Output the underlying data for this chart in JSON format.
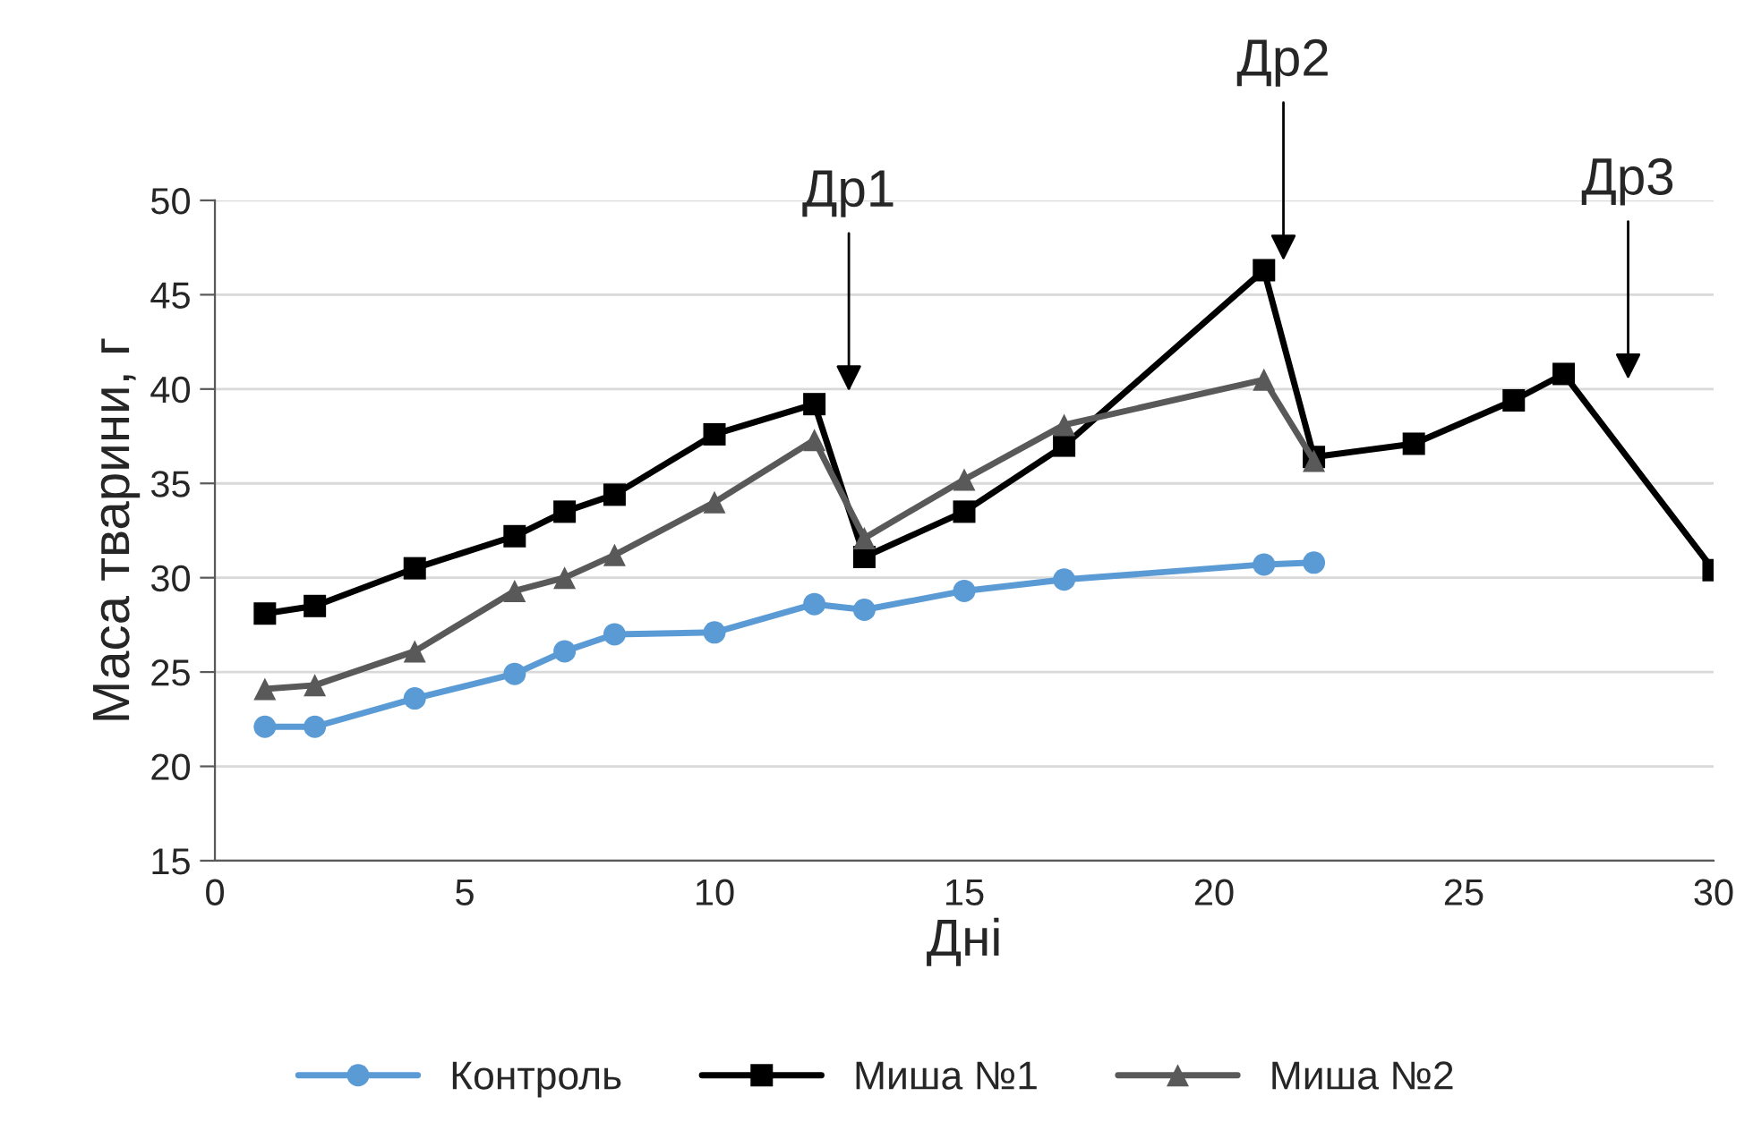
{
  "chart_data": {
    "type": "line",
    "xlabel": "Дні",
    "ylabel": "Маса тварини, г",
    "xlim": [
      0,
      30
    ],
    "xticks": [
      0,
      5,
      10,
      15,
      20,
      25,
      30
    ],
    "ylim": [
      15,
      50
    ],
    "yticks": [
      15,
      20,
      25,
      30,
      35,
      40,
      45,
      50
    ],
    "grid": "y",
    "legend": "bottom",
    "line_style": "solid",
    "series": [
      {
        "name": "Контроль",
        "color": "#5b9bd5",
        "marker": "circle",
        "x": [
          1,
          2,
          4,
          6,
          7,
          8,
          10,
          12,
          13,
          15,
          17,
          21,
          22
        ],
        "values": [
          22.1,
          22.1,
          23.6,
          24.9,
          26.1,
          27.0,
          27.1,
          28.6,
          28.3,
          29.3,
          29.9,
          30.7,
          30.8
        ]
      },
      {
        "name": "Миша №1",
        "color": "#000000",
        "marker": "square",
        "x": [
          1,
          2,
          4,
          6,
          7,
          8,
          10,
          12,
          13,
          15,
          17,
          21,
          22,
          24,
          26,
          27,
          30
        ],
        "values": [
          28.1,
          28.5,
          30.5,
          32.2,
          33.5,
          34.4,
          37.6,
          39.2,
          31.1,
          33.5,
          37.0,
          46.3,
          36.4,
          37.1,
          39.4,
          40.8,
          30.4
        ]
      },
      {
        "name": "Миша №2",
        "color": "#595959",
        "marker": "triangle",
        "x": [
          1,
          2,
          4,
          6,
          7,
          8,
          10,
          12,
          13,
          15,
          17,
          21,
          22
        ],
        "values": [
          24.1,
          24.3,
          26.1,
          29.3,
          30.0,
          31.2,
          34.0,
          37.3,
          32.1,
          35.2,
          38.1,
          40.5,
          36.2
        ]
      }
    ],
    "annotations": [
      "Др1",
      "Др2",
      "Др3"
    ]
  }
}
